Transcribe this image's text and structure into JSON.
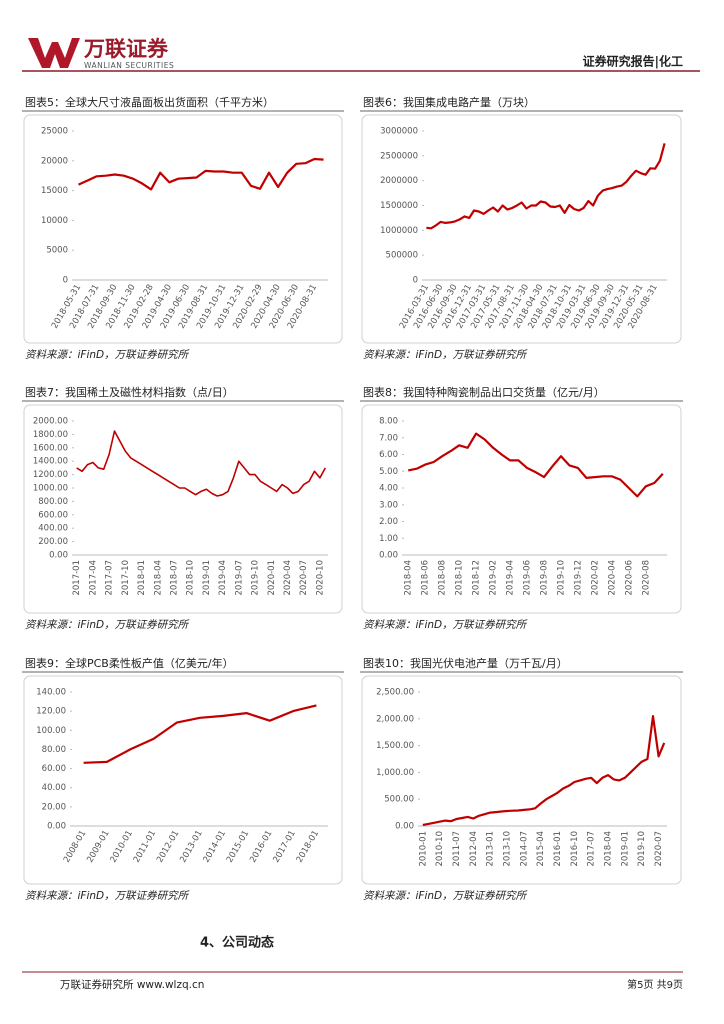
{
  "header": {
    "logo": "万联证券",
    "logo_en": "WANLIAN SECURITIES",
    "report_type": "证券研究报告|化工"
  },
  "chart_data": [
    {
      "type": "line",
      "title": "图表5：全球大尺寸液晶面板出货面积（千平方米）",
      "source": "资料来源：iFinD，万联证券研究所",
      "color": "#c00000",
      "categories": [
        "2018-05-31",
        null,
        "2018-07-31",
        null,
        "2018-09-30",
        null,
        "2018-11-30",
        null,
        "2019-02-28",
        null,
        "2019-04-30",
        null,
        "2019-06-30",
        null,
        "2019-08-31",
        null,
        "2019-10-31",
        null,
        "2019-12-31",
        null,
        "2020-02-29",
        null,
        "2020-04-30",
        null,
        "2020-06-30",
        null,
        "2020-08-31",
        null
      ],
      "values": [
        16000,
        16700,
        17400,
        17500,
        17700,
        17500,
        17000,
        16200,
        15200,
        18000,
        16400,
        17000,
        17100,
        17200,
        18300,
        18200,
        18200,
        18000,
        18000,
        15800,
        15300,
        18000,
        15600,
        18000,
        19500,
        19600,
        20300,
        20200
      ],
      "ylim": [
        0,
        25000
      ],
      "yticks": [
        0,
        5000,
        10000,
        15000,
        20000,
        25000
      ]
    },
    {
      "type": "line",
      "title": "图表6：我国集成电路产量（万块）",
      "source": "资料来源：iFinD，万联证券研究所",
      "color": "#c00000",
      "categories": [
        "2016-03-31",
        null,
        null,
        "2016-06-30",
        null,
        null,
        "2016-09-30",
        null,
        null,
        "2016-12-31",
        null,
        null,
        "2017-03-31",
        null,
        null,
        "2017-05-31",
        null,
        null,
        "2017-08-31",
        null,
        null,
        "2017-11-30",
        null,
        null,
        "2018-04-30",
        null,
        null,
        "2018-07-31",
        null,
        null,
        "2018-10-31",
        null,
        null,
        "2019-03-31",
        null,
        null,
        "2019-06-30",
        null,
        null,
        "2019-09-30",
        null,
        null,
        "2019-12-31",
        null,
        null,
        "2020-05-31",
        null,
        null,
        "2020-08-31",
        null,
        null
      ],
      "values": [
        1050000,
        1040000,
        1100000,
        1170000,
        1150000,
        1160000,
        1180000,
        1220000,
        1280000,
        1250000,
        1400000,
        1380000,
        1330000,
        1400000,
        1460000,
        1380000,
        1500000,
        1420000,
        1450000,
        1500000,
        1560000,
        1440000,
        1500000,
        1500000,
        1580000,
        1560000,
        1480000,
        1470000,
        1500000,
        1350000,
        1510000,
        1430000,
        1400000,
        1450000,
        1590000,
        1500000,
        1700000,
        1800000,
        1830000,
        1850000,
        1880000,
        1900000,
        1980000,
        2100000,
        2200000,
        2150000,
        2120000,
        2250000,
        2240000,
        2400000,
        2750000
      ],
      "ylim": [
        0,
        3000000
      ],
      "yticks": [
        0,
        500000,
        1000000,
        1500000,
        2000000,
        2500000,
        3000000
      ]
    },
    {
      "type": "line",
      "title": "图表7：我国稀土及磁性材料指数（点/日）",
      "source": "资料来源：iFinD，万联证券研究所",
      "color": "#c00000",
      "categories": [
        "2017-01",
        null,
        null,
        "2017-04",
        null,
        null,
        "2017-07",
        null,
        null,
        "2017-10",
        null,
        null,
        "2018-01",
        null,
        null,
        "2018-04",
        null,
        null,
        "2018-07",
        null,
        null,
        "2018-10",
        null,
        null,
        "2019-01",
        null,
        null,
        "2019-04",
        null,
        null,
        "2019-07",
        null,
        null,
        "2019-10",
        null,
        null,
        "2020-01",
        null,
        null,
        "2020-04",
        null,
        null,
        "2020-07",
        null,
        null,
        "2020-10",
        null
      ],
      "values": [
        1300,
        1250,
        1350,
        1380,
        1300,
        1280,
        1500,
        1850,
        1700,
        1550,
        1450,
        1400,
        1350,
        1300,
        1250,
        1200,
        1150,
        1100,
        1050,
        1000,
        1000,
        950,
        900,
        950,
        980,
        920,
        880,
        900,
        950,
        1150,
        1400,
        1300,
        1200,
        1200,
        1100,
        1050,
        1000,
        950,
        1050,
        1000,
        920,
        950,
        1050,
        1100,
        1250,
        1150,
        1300
      ],
      "ylim": [
        0,
        2000
      ],
      "yticks": [
        {
          "value": 0,
          "label": "0.00"
        },
        {
          "value": 200,
          "label": "200.00"
        },
        {
          "value": 400,
          "label": "400.00"
        },
        {
          "value": 600,
          "label": "600.00"
        },
        {
          "value": 800,
          "label": "800.00"
        },
        {
          "value": 1000,
          "label": "1000.00"
        },
        {
          "value": 1200,
          "label": "1200.00"
        },
        {
          "value": 1400,
          "label": "1400.00"
        },
        {
          "value": 1600,
          "label": "1600.00"
        },
        {
          "value": 1800,
          "label": "1800.00"
        },
        {
          "value": 2000,
          "label": "2000.00"
        }
      ]
    },
    {
      "type": "line",
      "title": "图表8：我国特种陶瓷制品出口交货量（亿元/月）",
      "source": "资料来源：iFinD，万联证券研究所",
      "color": "#c00000",
      "categories": [
        "2018-04",
        null,
        "2018-06",
        null,
        "2018-08",
        null,
        "2018-10",
        null,
        "2018-12",
        null,
        "2019-02",
        null,
        "2019-04",
        null,
        "2019-06",
        null,
        "2019-08",
        null,
        "2019-10",
        null,
        "2019-12",
        null,
        "2020-02",
        null,
        "2020-04",
        null,
        "2020-06",
        null,
        "2020-08",
        null,
        null
      ],
      "values": [
        5.05,
        5.15,
        5.4,
        5.55,
        5.9,
        6.2,
        6.55,
        6.4,
        7.25,
        6.9,
        6.4,
        6.0,
        5.65,
        5.65,
        5.2,
        4.95,
        4.65,
        5.3,
        5.9,
        5.35,
        5.2,
        4.6,
        4.65,
        4.7,
        4.7,
        4.5,
        4.0,
        3.5,
        4.1,
        4.3,
        4.85
      ],
      "ylim": [
        0,
        8
      ],
      "yticks": [
        {
          "value": 0,
          "label": "0.00"
        },
        {
          "value": 1,
          "label": "1.00"
        },
        {
          "value": 2,
          "label": "2.00"
        },
        {
          "value": 3,
          "label": "3.00"
        },
        {
          "value": 4,
          "label": "4.00"
        },
        {
          "value": 5,
          "label": "5.00"
        },
        {
          "value": 6,
          "label": "6.00"
        },
        {
          "value": 7,
          "label": "7.00"
        },
        {
          "value": 8,
          "label": "8.00"
        }
      ]
    },
    {
      "type": "line",
      "title": "图表9：全球PCB柔性板产值（亿美元/年）",
      "source": "资料来源：iFinD，万联证券研究所",
      "color": "#c00000",
      "categories": [
        "2008-01",
        "2009-01",
        "2010-01",
        "2011-01",
        "2012-01",
        "2013-01",
        "2014-01",
        "2015-01",
        "2016-01",
        "2017-01",
        "2018-01"
      ],
      "values": [
        66,
        67,
        80,
        91,
        108,
        113,
        115,
        118,
        110,
        120,
        126
      ],
      "ylim": [
        0,
        140
      ],
      "yticks": [
        {
          "value": 0,
          "label": "0.00"
        },
        {
          "value": 20,
          "label": "20.00"
        },
        {
          "value": 40,
          "label": "40.00"
        },
        {
          "value": 60,
          "label": "60.00"
        },
        {
          "value": 80,
          "label": "80.00"
        },
        {
          "value": 100,
          "label": "100.00"
        },
        {
          "value": 120,
          "label": "120.00"
        },
        {
          "value": 140,
          "label": "140.00"
        }
      ]
    },
    {
      "type": "line",
      "title": "图表10：我国光伏电池产量（万千瓦/月）",
      "source": "资料来源：iFinD，万联证券研究所",
      "color": "#c00000",
      "categories": [
        "2010-01",
        null,
        null,
        "2010-10",
        null,
        null,
        "2011-07",
        null,
        null,
        "2012-04",
        null,
        null,
        "2013-01",
        null,
        null,
        "2013-10",
        null,
        null,
        "2014-07",
        null,
        null,
        "2015-04",
        null,
        null,
        "2016-01",
        null,
        null,
        "2016-10",
        null,
        null,
        "2017-07",
        null,
        null,
        "2018-04",
        null,
        null,
        "2019-01",
        null,
        null,
        "2019-10",
        null,
        null,
        "2020-07",
        null
      ],
      "values": [
        20,
        40,
        60,
        80,
        100,
        90,
        130,
        150,
        170,
        140,
        190,
        220,
        250,
        260,
        270,
        280,
        285,
        290,
        300,
        310,
        330,
        420,
        500,
        560,
        620,
        700,
        750,
        820,
        850,
        880,
        900,
        800,
        900,
        950,
        870,
        850,
        900,
        1000,
        1100,
        1200,
        1250,
        2050,
        1300,
        1550
      ],
      "ylim": [
        0,
        2500
      ],
      "yticks": [
        {
          "value": 0,
          "label": "0.00"
        },
        {
          "value": 500,
          "label": "500.00"
        },
        {
          "value": 1000,
          "label": "1,000.00"
        },
        {
          "value": 1500,
          "label": "1,500.00"
        },
        {
          "value": 2000,
          "label": "2,000.00"
        },
        {
          "value": 2500,
          "label": "2,500.00"
        }
      ]
    }
  ],
  "section": {
    "heading": "4、公司动态"
  },
  "footer": {
    "left": "万联证券研究所 www.wlzq.cn",
    "page": "第5页 共9页"
  }
}
